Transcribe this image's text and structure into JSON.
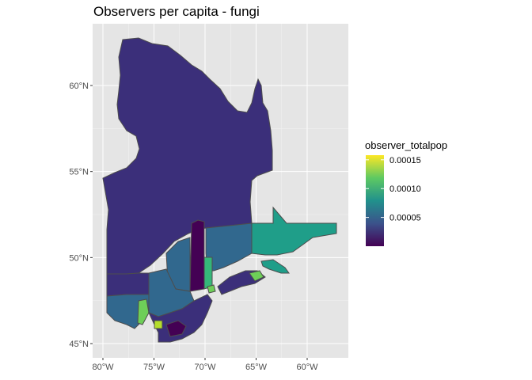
{
  "chart_data": {
    "type": "choropleth",
    "title": "Observers per capita - fungi",
    "x_axis": {
      "ticks": [
        "80°W",
        "75°W",
        "70°W",
        "65°W",
        "60°W"
      ],
      "values": [
        -80,
        -75,
        -70,
        -65,
        -60
      ],
      "range": [
        -80.5,
        -56.5
      ]
    },
    "y_axis": {
      "ticks": [
        "45°N",
        "50°N",
        "55°N",
        "60°N"
      ],
      "values": [
        45,
        50,
        55,
        60
      ],
      "range": [
        44.3,
        63.2
      ]
    },
    "legend": {
      "title": "observer_totalpop",
      "position": "right",
      "breaks": [
        "0.00005",
        "0.00010",
        "0.00015"
      ],
      "break_values": [
        5e-05,
        0.0001,
        0.00015
      ],
      "range": [
        0,
        0.000158
      ],
      "colors": [
        "#440154",
        "#3b528b",
        "#21918c",
        "#5ec962",
        "#fde725"
      ]
    },
    "grid": true,
    "colors": {
      "panel": "#e5e5e5",
      "gridline": "#ffffff",
      "border": "#4d4d4d",
      "very_low": "#440154",
      "low": "#3b2f7a",
      "mid_low": "#31688e",
      "mid": "#26828e",
      "mid_high": "#1f9e89",
      "high": "#6ece58",
      "highest": "#b5de2b"
    }
  }
}
